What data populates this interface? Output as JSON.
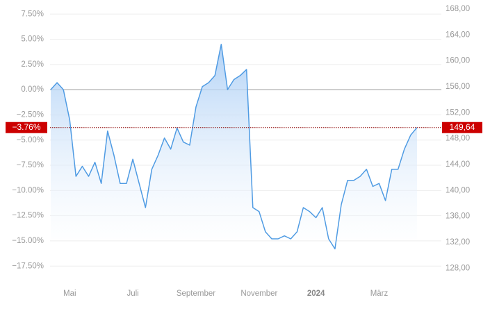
{
  "chart_data": {
    "type": "line",
    "categories": [
      null,
      null,
      null,
      "Mai",
      null,
      null,
      null,
      null,
      null,
      null,
      null,
      null,
      null,
      "Juli",
      null,
      null,
      null,
      null,
      null,
      null,
      null,
      null,
      null,
      "September",
      null,
      null,
      null,
      null,
      null,
      null,
      null,
      null,
      null,
      "November",
      null,
      null,
      null,
      null,
      null,
      null,
      null,
      null,
      "2024",
      null,
      null,
      null,
      null,
      null,
      null,
      null,
      null,
      null,
      "März",
      null,
      null,
      null,
      null,
      null,
      null
    ],
    "series": [
      {
        "color": "#4f9be3",
        "values": [
          0.0,
          0.7,
          0.0,
          -3.0,
          -8.6,
          -7.6,
          -8.6,
          -7.2,
          -9.3,
          -4.1,
          -6.5,
          -9.3,
          -9.3,
          -6.9,
          -9.3,
          -11.7,
          -7.9,
          -6.5,
          -4.8,
          -5.9,
          -3.8,
          -5.2,
          -5.5,
          -1.7,
          0.3,
          0.7,
          1.4,
          4.5,
          0.0,
          1.0,
          1.4,
          2.0,
          -11.7,
          -12.1,
          -14.1,
          -14.8,
          -14.8,
          -14.5,
          -14.8,
          -14.1,
          -11.7,
          -12.1,
          -12.7,
          -11.7,
          -14.8,
          -15.8,
          -11.4,
          -9.0,
          -9.0,
          -8.6,
          -7.9,
          -9.6,
          -9.3,
          -11.0,
          -7.9,
          -7.9,
          -5.9,
          -4.5,
          -3.76
        ]
      }
    ],
    "ylim": [
      -19,
      8
    ],
    "yticks": [
      {
        "value": 7.5,
        "label": "7.50%"
      },
      {
        "value": 5,
        "label": "5.00%"
      },
      {
        "value": 2.5,
        "label": "2.50%"
      },
      {
        "value": 0,
        "label": "0.00%"
      },
      {
        "value": -2.5,
        "label": "−2.50%"
      },
      {
        "value": -5,
        "label": "−5.00%"
      },
      {
        "value": -7.5,
        "label": "−7.50%"
      },
      {
        "value": -10,
        "label": "−10.00%"
      },
      {
        "value": -12.5,
        "label": "−12.50%"
      },
      {
        "value": -15,
        "label": "−15.00%"
      },
      {
        "value": -17.5,
        "label": "−17.50%"
      }
    ],
    "y2lim": [
      126,
      168
    ],
    "y2ticks": [
      {
        "value": 168,
        "label": "168,00"
      },
      {
        "value": 164,
        "label": "164,00"
      },
      {
        "value": 160,
        "label": "160,00"
      },
      {
        "value": 156,
        "label": "156,00"
      },
      {
        "value": 152,
        "label": "152,00"
      },
      {
        "value": 148,
        "label": "148,00"
      },
      {
        "value": 144,
        "label": "144,00"
      },
      {
        "value": 140,
        "label": "140,00"
      },
      {
        "value": 136,
        "label": "136,00"
      },
      {
        "value": 132,
        "label": "132,00"
      },
      {
        "value": 128,
        "label": "128,00"
      }
    ],
    "current": {
      "value": -3.76,
      "label": "−3.76%",
      "price": 149.64,
      "price_label": "149,64"
    },
    "grid": true
  }
}
